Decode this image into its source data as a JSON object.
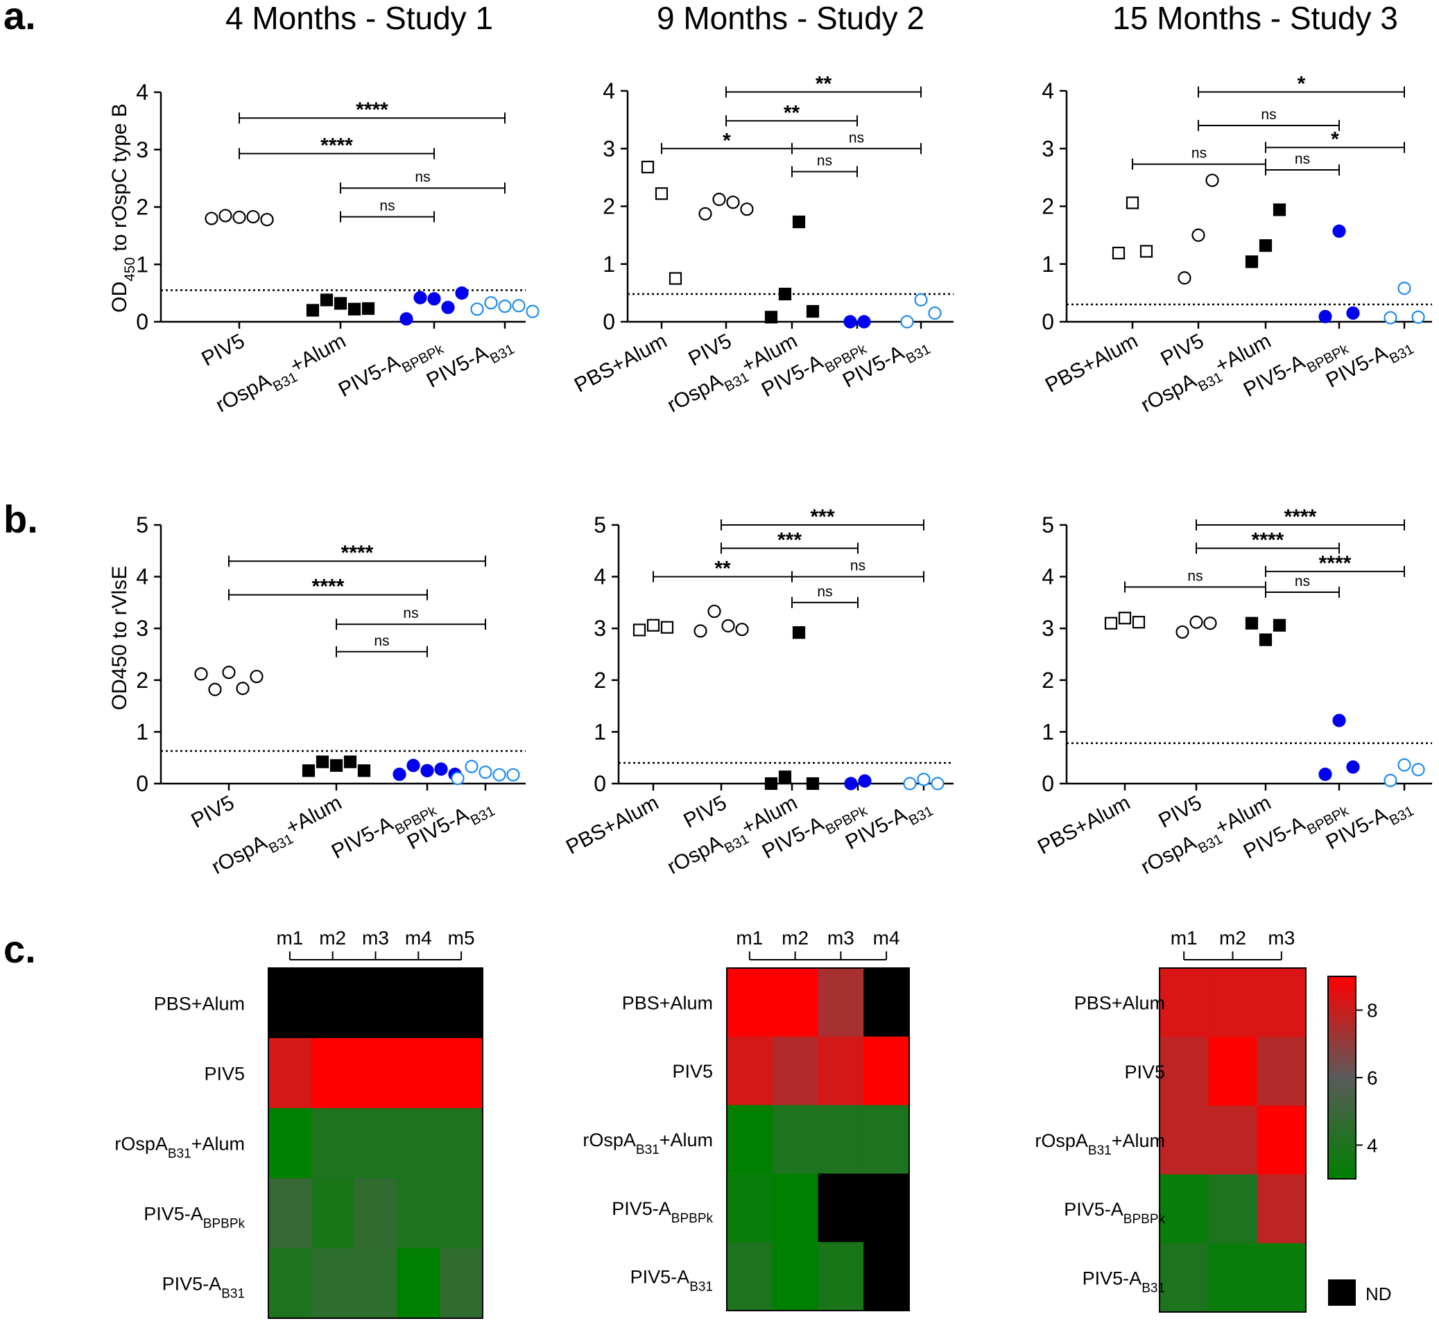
{
  "panel_labels": [
    "a.",
    "b.",
    "c."
  ],
  "studies": [
    "4 Months - Study 1",
    "9 Months - Study 2",
    "15 Months - Study 3"
  ],
  "colors": {
    "black": "#000000",
    "blue": "#0000ee",
    "light_blue": "#1e8cf0",
    "heat_low": "#008000",
    "heat_mid": "#5a5a5a",
    "heat_high": "#ff0000",
    "nd": "#000000"
  },
  "chart_data": [
    {
      "panel": "a",
      "study": 1,
      "type": "scatter",
      "ylabel_parts": [
        "OD",
        "450",
        " to rOspC type B"
      ],
      "ylim": [
        0,
        4
      ],
      "yticks": [
        0,
        1,
        2,
        3,
        4
      ],
      "cutoff": 0.55,
      "groups": [
        {
          "label": "PIV5",
          "marker": "circle-open",
          "color": "#000000",
          "values": [
            1.8,
            1.85,
            1.82,
            1.83,
            1.78
          ]
        },
        {
          "label": "rOspA_B31+Alum",
          "marker": "square-filled",
          "color": "#000000",
          "values": [
            0.2,
            0.38,
            0.32,
            0.22,
            0.23
          ]
        },
        {
          "label": "PIV5-A_BPBPk",
          "marker": "circle-filled",
          "color": "#0000ee",
          "values": [
            0.05,
            0.42,
            0.4,
            0.25,
            0.5
          ]
        },
        {
          "label": "PIV5-A_B31",
          "marker": "circle-open",
          "color": "#1e8cf0",
          "values": [
            0.22,
            0.33,
            0.27,
            0.28,
            0.18
          ]
        }
      ],
      "comparisons": [
        {
          "from": 0,
          "to": 3,
          "y": 3.55,
          "label": "****"
        },
        {
          "from": 0,
          "to": 2,
          "y": 2.93,
          "label": "****"
        },
        {
          "from": 1,
          "to": 3,
          "y": 2.33,
          "label": "ns"
        },
        {
          "from": 1,
          "to": 2,
          "y": 1.83,
          "label": "ns"
        }
      ]
    },
    {
      "panel": "a",
      "study": 2,
      "type": "scatter",
      "ylim": [
        0,
        4
      ],
      "yticks": [
        0,
        1,
        2,
        3,
        4
      ],
      "cutoff": 0.48,
      "groups": [
        {
          "label": "PBS+Alum",
          "marker": "square-open",
          "color": "#000000",
          "values": [
            2.68,
            2.22,
            0.75
          ]
        },
        {
          "label": "PIV5",
          "marker": "circle-open",
          "color": "#000000",
          "values": [
            1.87,
            2.12,
            2.07,
            1.95
          ]
        },
        {
          "label": "rOspA_B31+Alum",
          "marker": "square-filled",
          "color": "#000000",
          "values": [
            0.08,
            0.48,
            1.73,
            0.18
          ]
        },
        {
          "label": "PIV5-A_BPBPk",
          "marker": "circle-filled",
          "color": "#0000ee",
          "values": [
            0.0,
            0.0
          ]
        },
        {
          "label": "PIV5-A_B31",
          "marker": "circle-open",
          "color": "#1e8cf0",
          "values": [
            0.0,
            0.38,
            0.15
          ]
        }
      ],
      "comparisons": [
        {
          "from": 1,
          "to": 4,
          "y": 3.98,
          "label": "**"
        },
        {
          "from": 1,
          "to": 3,
          "y": 3.48,
          "label": "**"
        },
        {
          "from": 0,
          "to": 2,
          "y": 3.0,
          "label": "*"
        },
        {
          "from": 2,
          "to": 4,
          "y": 3.0,
          "label": "ns"
        },
        {
          "from": 2,
          "to": 3,
          "y": 2.6,
          "label": "ns"
        }
      ]
    },
    {
      "panel": "a",
      "study": 3,
      "type": "scatter",
      "ylim": [
        0,
        4
      ],
      "yticks": [
        0,
        1,
        2,
        3,
        4
      ],
      "cutoff": 0.3,
      "groups": [
        {
          "label": "PBS+Alum",
          "marker": "square-open",
          "color": "#000000",
          "values": [
            1.19,
            2.06,
            1.22
          ]
        },
        {
          "label": "PIV5",
          "marker": "circle-open",
          "color": "#000000",
          "values": [
            0.76,
            1.5,
            2.45
          ]
        },
        {
          "label": "rOspA_B31+Alum",
          "marker": "square-filled",
          "color": "#000000",
          "values": [
            1.04,
            1.32,
            1.94
          ]
        },
        {
          "label": "PIV5-A_BPBPk",
          "marker": "circle-filled",
          "color": "#0000ee",
          "values": [
            0.09,
            1.57,
            0.15
          ]
        },
        {
          "label": "PIV5-A_B31",
          "marker": "circle-open",
          "color": "#1e8cf0",
          "values": [
            0.07,
            0.58,
            0.08
          ]
        }
      ],
      "comparisons": [
        {
          "from": 1,
          "to": 4,
          "y": 3.98,
          "label": "*"
        },
        {
          "from": 1,
          "to": 3,
          "y": 3.4,
          "label": "ns"
        },
        {
          "from": 2,
          "to": 4,
          "y": 3.02,
          "label": "*"
        },
        {
          "from": 0,
          "to": 2,
          "y": 2.73,
          "label": "ns"
        },
        {
          "from": 2,
          "to": 3,
          "y": 2.63,
          "label": "ns"
        }
      ]
    },
    {
      "panel": "b",
      "study": 1,
      "type": "scatter",
      "ylabel_parts": [
        "OD450 to rVlsE"
      ],
      "ylim": [
        0,
        5
      ],
      "yticks": [
        0,
        1,
        2,
        3,
        4,
        5
      ],
      "cutoff": 0.63,
      "groups": [
        {
          "label": "PIV5",
          "marker": "circle-open",
          "color": "#000000",
          "values": [
            2.12,
            1.82,
            2.15,
            1.84,
            2.07
          ]
        },
        {
          "label": "rOspA_B31+Alum",
          "marker": "square-filled",
          "color": "#000000",
          "values": [
            0.25,
            0.42,
            0.35,
            0.42,
            0.25
          ]
        },
        {
          "label": "PIV5-A_BPBPk",
          "marker": "circle-filled",
          "color": "#0000ee",
          "values": [
            0.18,
            0.35,
            0.25,
            0.28,
            0.18
          ]
        },
        {
          "label": "PIV5-A_B31",
          "marker": "circle-open",
          "color": "#1e8cf0",
          "values": [
            0.1,
            0.33,
            0.22,
            0.17,
            0.17
          ]
        }
      ],
      "comparisons": [
        {
          "from": 0,
          "to": 3,
          "y": 4.3,
          "label": "****"
        },
        {
          "from": 0,
          "to": 2,
          "y": 3.65,
          "label": "****"
        },
        {
          "from": 1,
          "to": 3,
          "y": 3.08,
          "label": "ns"
        },
        {
          "from": 1,
          "to": 2,
          "y": 2.55,
          "label": "ns"
        }
      ]
    },
    {
      "panel": "b",
      "study": 2,
      "type": "scatter",
      "ylim": [
        0,
        5
      ],
      "yticks": [
        0,
        1,
        2,
        3,
        4,
        5
      ],
      "cutoff": 0.4,
      "groups": [
        {
          "label": "PBS+Alum",
          "marker": "square-open",
          "color": "#000000",
          "values": [
            2.97,
            3.06,
            3.02
          ]
        },
        {
          "label": "PIV5",
          "marker": "circle-open",
          "color": "#000000",
          "values": [
            2.95,
            3.33,
            3.05,
            2.98
          ]
        },
        {
          "label": "rOspA_B31+Alum",
          "marker": "square-filled",
          "color": "#000000",
          "values": [
            0.0,
            0.13,
            2.92,
            0.0
          ]
        },
        {
          "label": "PIV5-A_BPBPk",
          "marker": "circle-filled",
          "color": "#0000ee",
          "values": [
            0.0,
            0.05
          ]
        },
        {
          "label": "PIV5-A_B31",
          "marker": "circle-open",
          "color": "#1e8cf0",
          "values": [
            0.0,
            0.08,
            0.0
          ]
        }
      ],
      "comparisons": [
        {
          "from": 1,
          "to": 4,
          "y": 5.0,
          "label": "***"
        },
        {
          "from": 1,
          "to": 3,
          "y": 4.55,
          "label": "***"
        },
        {
          "from": 0,
          "to": 2,
          "y": 4.0,
          "label": "**"
        },
        {
          "from": 2,
          "to": 4,
          "y": 4.0,
          "label": "ns"
        },
        {
          "from": 2,
          "to": 3,
          "y": 3.5,
          "label": "ns"
        }
      ]
    },
    {
      "panel": "b",
      "study": 3,
      "type": "scatter",
      "ylim": [
        0,
        5
      ],
      "yticks": [
        0,
        1,
        2,
        3,
        4,
        5
      ],
      "cutoff": 0.78,
      "groups": [
        {
          "label": "PBS+Alum",
          "marker": "square-open",
          "color": "#000000",
          "values": [
            3.1,
            3.2,
            3.12
          ]
        },
        {
          "label": "PIV5",
          "marker": "circle-open",
          "color": "#000000",
          "values": [
            2.93,
            3.12,
            3.1
          ]
        },
        {
          "label": "rOspA_B31+Alum",
          "marker": "square-filled",
          "color": "#000000",
          "values": [
            3.1,
            2.78,
            3.06
          ]
        },
        {
          "label": "PIV5-A_BPBPk",
          "marker": "circle-filled",
          "color": "#0000ee",
          "values": [
            0.18,
            1.22,
            0.32
          ]
        },
        {
          "label": "PIV5-A_B31",
          "marker": "circle-open",
          "color": "#1e8cf0",
          "values": [
            0.06,
            0.36,
            0.27
          ]
        }
      ],
      "comparisons": [
        {
          "from": 1,
          "to": 4,
          "y": 5.0,
          "label": "****"
        },
        {
          "from": 1,
          "to": 3,
          "y": 4.55,
          "label": "****"
        },
        {
          "from": 2,
          "to": 4,
          "y": 4.1,
          "label": "****"
        },
        {
          "from": 0,
          "to": 2,
          "y": 3.8,
          "label": "ns"
        },
        {
          "from": 2,
          "to": 3,
          "y": 3.7,
          "label": "ns"
        }
      ]
    },
    {
      "panel": "c",
      "study": 1,
      "type": "heatmap",
      "columns": [
        "m1",
        "m2",
        "m3",
        "m4",
        "m5"
      ],
      "rows": [
        "PBS+Alum",
        "PIV5",
        "rOspA_B31+Alum",
        "PIV5-A_BPBPk",
        "PIV5-A_B31"
      ],
      "values": [
        [
          null,
          null,
          null,
          null,
          null
        ],
        [
          8.2,
          9,
          9,
          9,
          9
        ],
        [
          3,
          4,
          4,
          4,
          4
        ],
        [
          4.8,
          3.8,
          4.6,
          4,
          4
        ],
        [
          4,
          4.5,
          4.5,
          3,
          4.6
        ]
      ]
    },
    {
      "panel": "c",
      "study": 2,
      "type": "heatmap",
      "columns": [
        "m1",
        "m2",
        "m3",
        "m4"
      ],
      "rows": [
        "PBS+Alum",
        "PIV5",
        "rOspA_B31+Alum",
        "PIV5-A_BPBPk",
        "PIV5-A_B31"
      ],
      "values": [
        [
          9,
          9,
          7.4,
          null
        ],
        [
          8.2,
          7.6,
          8.2,
          9
        ],
        [
          3,
          4,
          4,
          4
        ],
        [
          3.3,
          3,
          null,
          null
        ],
        [
          4,
          3,
          3.8,
          null
        ]
      ]
    },
    {
      "panel": "c",
      "study": 3,
      "type": "heatmap",
      "columns": [
        "m1",
        "m2",
        "m3"
      ],
      "rows": [
        "PBS+Alum",
        "PIV5",
        "rOspA_B31+Alum",
        "PIV5-A_BPBPk",
        "PIV5-A_B31"
      ],
      "values": [
        [
          8.3,
          8.3,
          8.3
        ],
        [
          7.8,
          9,
          7.6
        ],
        [
          7.8,
          7.8,
          9
        ],
        [
          3.3,
          4,
          7.8
        ],
        [
          4,
          3.3,
          3.3
        ]
      ],
      "colorbar": {
        "min": 3,
        "max": 9,
        "ticks": [
          4,
          6,
          8
        ],
        "nd_label": "ND"
      }
    }
  ]
}
